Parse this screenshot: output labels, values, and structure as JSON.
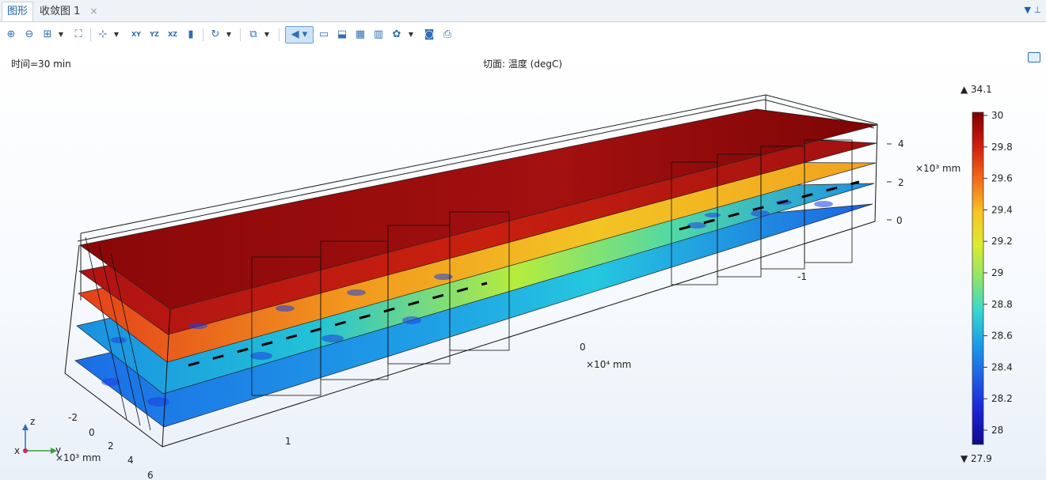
{
  "tabs": [
    {
      "label": "图形",
      "active": true
    },
    {
      "label": "收敛图 1",
      "close_glyph": "×",
      "active": false
    }
  ],
  "toolbar": {
    "buttons": [
      {
        "name": "zoom-in-icon"
      },
      {
        "name": "zoom-out-icon"
      },
      {
        "name": "zoom-box-icon"
      },
      {
        "name": "zoom-extents-icon"
      },
      {
        "name": "axis-orientation-icon"
      },
      {
        "name": "view-xy-icon",
        "text": "XY"
      },
      {
        "name": "view-yz-icon",
        "text": "YZ"
      },
      {
        "name": "view-xz-icon",
        "text": "XZ"
      },
      {
        "name": "camera-view-icon"
      },
      {
        "name": "rotate-icon"
      },
      {
        "name": "select-box-icon"
      },
      {
        "name": "scene-light-icon"
      },
      {
        "name": "transparency-icon"
      },
      {
        "name": "wireframe-icon"
      },
      {
        "name": "grid-icon"
      },
      {
        "name": "color-legend-icon"
      },
      {
        "name": "render-settings-icon"
      },
      {
        "name": "screenshot-camera-icon"
      },
      {
        "name": "print-icon"
      }
    ]
  },
  "graphics": {
    "time_label": "时间=30 min",
    "plot_title": "切面: 温度 (degC)",
    "axes": {
      "x_ticks": [
        "-1",
        "0",
        "1"
      ],
      "x_unit": "×10⁴ mm",
      "y_ticks": [
        "-2",
        "0",
        "2",
        "4",
        "6"
      ],
      "y_unit": "×10³ mm",
      "z_ticks": [
        "0",
        "2",
        "4"
      ],
      "z_unit": "×10³ mm"
    },
    "triad": {
      "x": "x",
      "y": "y",
      "z": "z"
    },
    "colorbar": {
      "max_label": "▲ 34.1",
      "min_label": "▼ 27.9",
      "ticks": [
        "30",
        "29.8",
        "29.6",
        "29.4",
        "29.2",
        "29",
        "28.8",
        "28.6",
        "28.4",
        "28.2",
        "28"
      ],
      "colors": [
        "#7f0000",
        "#d11b0f",
        "#f26a1b",
        "#f6c325",
        "#dcec2d",
        "#8fe36c",
        "#35d7d0",
        "#1c9be8",
        "#1d5ee6",
        "#1c22d5",
        "#0d0b8a"
      ]
    }
  }
}
